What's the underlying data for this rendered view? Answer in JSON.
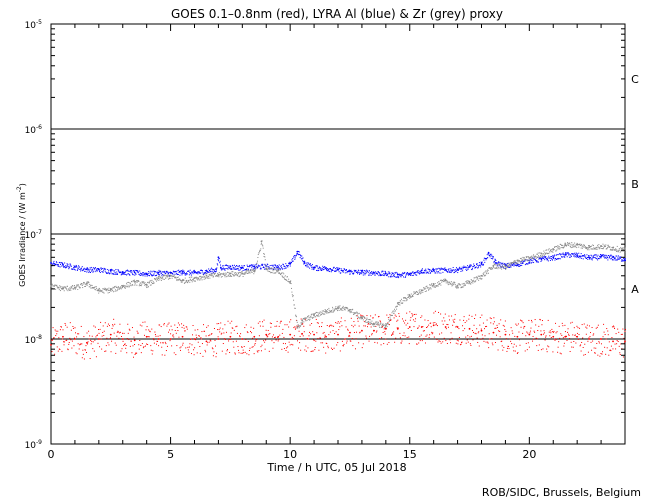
{
  "chart_data": {
    "type": "scatter",
    "title": "GOES 0.1–0.8nm (red), LYRA Al (blue) & Zr (grey) proxy",
    "xlabel": "Time / h UTC, 05 Jul 2018",
    "ylabel": "GOES Irradiance / (W m",
    "ylabel_sup": "-2",
    "ylabel_close": ")",
    "footer": "ROB/SIDC, Brussels, Belgium",
    "x_range": [
      0,
      24
    ],
    "y_range": [
      1e-09,
      1e-05
    ],
    "y_scale": "log",
    "x_ticks": [
      0,
      5,
      10,
      15,
      20
    ],
    "x_tick_labels": [
      "0",
      "5",
      "10",
      "15",
      "20"
    ],
    "y_ticks": [
      1e-09,
      1e-08,
      1e-07,
      1e-06,
      1e-05
    ],
    "y_tick_bases": [
      "10",
      "10",
      "10",
      "10",
      "10"
    ],
    "y_tick_exps": [
      "-9",
      "-8",
      "-7",
      "-6",
      "-5"
    ],
    "flare_class_lines": [
      1e-08,
      1e-07,
      1e-06
    ],
    "flare_classes": [
      {
        "label": "A",
        "y": 3e-08
      },
      {
        "label": "B",
        "y": 3e-07
      },
      {
        "label": "C",
        "y": 3e-06
      }
    ],
    "series": [
      {
        "name": "GOES 0.1–0.8nm",
        "color": "#ff0000",
        "style": "scattered",
        "points": [
          [
            0,
            8.8e-09
          ],
          [
            0.5,
            1.05e-08
          ],
          [
            1,
            1e-08
          ],
          [
            1.5,
            9.2e-09
          ],
          [
            2,
            1e-08
          ],
          [
            2.5,
            1.1e-08
          ],
          [
            3,
            1e-08
          ],
          [
            3.5,
            9.7e-09
          ],
          [
            4,
            1.05e-08
          ],
          [
            4.5,
            1e-08
          ],
          [
            5,
            1e-08
          ],
          [
            5.5,
            1.05e-08
          ],
          [
            6,
            1e-08
          ],
          [
            6.5,
            9.5e-09
          ],
          [
            7,
            1e-08
          ],
          [
            7.5,
            1.05e-08
          ],
          [
            8,
            1e-08
          ],
          [
            8.5,
            1.05e-08
          ],
          [
            9,
            1.1e-08
          ],
          [
            9.5,
            1.05e-08
          ],
          [
            10,
            1.1e-08
          ],
          [
            10.5,
            1.12e-08
          ],
          [
            11,
            1.1e-08
          ],
          [
            11.5,
            1.05e-08
          ],
          [
            12,
            1.1e-08
          ],
          [
            12.5,
            1.15e-08
          ],
          [
            13,
            1.2e-08
          ],
          [
            13.5,
            1.2e-08
          ],
          [
            14,
            1.25e-08
          ],
          [
            14.5,
            1.25e-08
          ],
          [
            15,
            1.3e-08
          ],
          [
            15.5,
            1.3e-08
          ],
          [
            16,
            1.35e-08
          ],
          [
            16.5,
            1.3e-08
          ],
          [
            17,
            1.3e-08
          ],
          [
            17.5,
            1.25e-08
          ],
          [
            18,
            1.2e-08
          ],
          [
            18.5,
            1.15e-08
          ],
          [
            19,
            1.1e-08
          ],
          [
            19.5,
            1.05e-08
          ],
          [
            20,
            1.1e-08
          ],
          [
            20.5,
            1.1e-08
          ],
          [
            21,
            1.05e-08
          ],
          [
            21.5,
            1.05e-08
          ],
          [
            22,
            1.05e-08
          ],
          [
            22.5,
            1e-08
          ],
          [
            23,
            1e-08
          ],
          [
            23.5,
            9.5e-09
          ],
          [
            24,
            9.5e-09
          ]
        ]
      },
      {
        "name": "LYRA Al",
        "color": "#0000ff",
        "style": "line",
        "points": [
          [
            0,
            5.3e-08
          ],
          [
            0.5,
            5.1e-08
          ],
          [
            1,
            4.85e-08
          ],
          [
            1.5,
            4.6e-08
          ],
          [
            2,
            4.6e-08
          ],
          [
            2.5,
            4.45e-08
          ],
          [
            3,
            4.35e-08
          ],
          [
            3.5,
            4.3e-08
          ],
          [
            4,
            4.2e-08
          ],
          [
            4.5,
            4.3e-08
          ],
          [
            5,
            4.25e-08
          ],
          [
            5.5,
            4.35e-08
          ],
          [
            6,
            4.3e-08
          ],
          [
            6.5,
            4.45e-08
          ],
          [
            6.9,
            4.6e-08
          ],
          [
            7.0,
            6e-08
          ],
          [
            7.1,
            4.8e-08
          ],
          [
            7.5,
            4.9e-08
          ],
          [
            8,
            4.8e-08
          ],
          [
            8.5,
            4.9e-08
          ],
          [
            9,
            4.95e-08
          ],
          [
            9.5,
            4.85e-08
          ],
          [
            10,
            5.2e-08
          ],
          [
            10.3,
            6.8e-08
          ],
          [
            10.6,
            5.3e-08
          ],
          [
            11,
            4.8e-08
          ],
          [
            11.5,
            4.75e-08
          ],
          [
            12,
            4.55e-08
          ],
          [
            12.5,
            4.4e-08
          ],
          [
            13,
            4.35e-08
          ],
          [
            13.5,
            4.3e-08
          ],
          [
            14,
            4.2e-08
          ],
          [
            14.5,
            4.1e-08
          ],
          [
            15,
            4.15e-08
          ],
          [
            15.5,
            4.5e-08
          ],
          [
            16,
            4.5e-08
          ],
          [
            16.5,
            4.55e-08
          ],
          [
            17,
            4.6e-08
          ],
          [
            17.5,
            4.85e-08
          ],
          [
            18,
            5.2e-08
          ],
          [
            18.3,
            6.6e-08
          ],
          [
            18.6,
            5.3e-08
          ],
          [
            19,
            5e-08
          ],
          [
            19.5,
            5.2e-08
          ],
          [
            20,
            5.6e-08
          ],
          [
            20.5,
            5.8e-08
          ],
          [
            21,
            6e-08
          ],
          [
            21.5,
            6.4e-08
          ],
          [
            22,
            6.3e-08
          ],
          [
            22.5,
            6e-08
          ],
          [
            23,
            6.1e-08
          ],
          [
            23.5,
            6e-08
          ],
          [
            24,
            5.8e-08
          ]
        ]
      },
      {
        "name": "LYRA Zr",
        "color": "#8c8c8c",
        "style": "line",
        "points": [
          [
            0,
            3.2e-08
          ],
          [
            0.5,
            3.05e-08
          ],
          [
            1,
            3.1e-08
          ],
          [
            1.5,
            3.4e-08
          ],
          [
            2,
            2.9e-08
          ],
          [
            2.5,
            2.95e-08
          ],
          [
            3,
            3.2e-08
          ],
          [
            3.5,
            3.5e-08
          ],
          [
            4,
            3.3e-08
          ],
          [
            4.5,
            3.8e-08
          ],
          [
            5,
            4e-08
          ],
          [
            5.5,
            3.6e-08
          ],
          [
            6,
            3.8e-08
          ],
          [
            6.5,
            4e-08
          ],
          [
            7,
            4.1e-08
          ],
          [
            7.5,
            4.2e-08
          ],
          [
            8,
            4.2e-08
          ],
          [
            8.5,
            4.5e-08
          ],
          [
            8.8,
            8.5e-08
          ],
          [
            9,
            4.6e-08
          ],
          [
            9.5,
            4.5e-08
          ],
          [
            10,
            3.5e-08
          ],
          [
            10.3,
            1.3e-08
          ],
          [
            10.5,
            1.5e-08
          ],
          [
            11,
            1.7e-08
          ],
          [
            11.5,
            1.85e-08
          ],
          [
            12,
            2e-08
          ],
          [
            12.5,
            1.9e-08
          ],
          [
            13,
            1.6e-08
          ],
          [
            13.5,
            1.4e-08
          ],
          [
            14,
            1.35e-08
          ],
          [
            14.5,
            2.2e-08
          ],
          [
            15,
            2.6e-08
          ],
          [
            15.5,
            2.9e-08
          ],
          [
            16,
            3.3e-08
          ],
          [
            16.5,
            3.6e-08
          ],
          [
            17,
            3.2e-08
          ],
          [
            17.5,
            3.5e-08
          ],
          [
            18,
            4e-08
          ],
          [
            18.5,
            5e-08
          ],
          [
            19,
            4.9e-08
          ],
          [
            19.5,
            5.6e-08
          ],
          [
            20,
            5.9e-08
          ],
          [
            20.5,
            6.5e-08
          ],
          [
            21,
            7.2e-08
          ],
          [
            21.5,
            8e-08
          ],
          [
            22,
            7.9e-08
          ],
          [
            22.5,
            7.5e-08
          ],
          [
            23,
            7.7e-08
          ],
          [
            23.5,
            7.4e-08
          ],
          [
            24,
            7e-08
          ]
        ]
      }
    ],
    "grid": false,
    "legend": "none"
  }
}
